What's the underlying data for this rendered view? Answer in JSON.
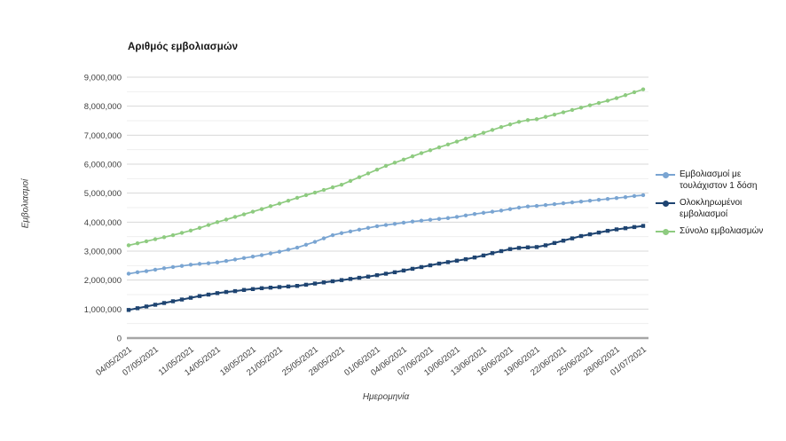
{
  "legend_position": "right",
  "colors": {
    "background": "#ffffff",
    "grid_major": "#d8d8d8",
    "grid_minor": "#efefef",
    "axis_line": "#a6a6a6",
    "tick_text": "#3d3d3d"
  },
  "chart_data": {
    "type": "line",
    "title": "Αριθμός εμβολιασμών",
    "xlabel": "Ημερομηνία",
    "ylabel": "Εμβολιασμοί",
    "ylim": [
      0,
      9000000
    ],
    "grid": {
      "major_step": 1000000,
      "minor_step": 500000,
      "visible": true
    },
    "x": [
      "04/05/2021",
      "05/05/2021",
      "06/05/2021",
      "07/05/2021",
      "08/05/2021",
      "09/05/2021",
      "10/05/2021",
      "11/05/2021",
      "12/05/2021",
      "13/05/2021",
      "14/05/2021",
      "15/05/2021",
      "16/05/2021",
      "17/05/2021",
      "18/05/2021",
      "19/05/2021",
      "20/05/2021",
      "21/05/2021",
      "22/05/2021",
      "23/05/2021",
      "24/05/2021",
      "25/05/2021",
      "26/05/2021",
      "27/05/2021",
      "28/05/2021",
      "29/05/2021",
      "30/05/2021",
      "31/05/2021",
      "01/06/2021",
      "02/06/2021",
      "03/06/2021",
      "04/06/2021",
      "05/06/2021",
      "06/06/2021",
      "07/06/2021",
      "08/06/2021",
      "09/06/2021",
      "10/06/2021",
      "11/06/2021",
      "12/06/2021",
      "13/06/2021",
      "14/06/2021",
      "15/06/2021",
      "16/06/2021",
      "17/06/2021",
      "18/06/2021",
      "19/06/2021",
      "20/06/2021",
      "21/06/2021",
      "22/06/2021",
      "23/06/2021",
      "24/06/2021",
      "25/06/2021",
      "26/06/2021",
      "27/06/2021",
      "28/06/2021",
      "29/06/2021",
      "30/06/2021",
      "01/07/2021"
    ],
    "x_tick_labels": [
      "04/05/2021",
      "07/05/2021",
      "11/05/2021",
      "14/05/2021",
      "18/05/2021",
      "21/05/2021",
      "25/05/2021",
      "28/05/2021",
      "01/06/2021",
      "04/06/2021",
      "07/06/2021",
      "10/06/2021",
      "13/06/2021",
      "16/06/2021",
      "19/06/2021",
      "22/06/2021",
      "25/06/2021",
      "28/06/2021",
      "01/07/2021"
    ],
    "series": [
      {
        "name": "Εμβολιασμοί με τουλάχιστον 1 δόση",
        "color": "#7aa5d2",
        "marker": "circle",
        "values": [
          2220000,
          2270000,
          2310000,
          2360000,
          2410000,
          2450000,
          2490000,
          2530000,
          2560000,
          2580000,
          2610000,
          2660000,
          2710000,
          2760000,
          2810000,
          2860000,
          2920000,
          2980000,
          3050000,
          3120000,
          3220000,
          3320000,
          3440000,
          3550000,
          3620000,
          3680000,
          3740000,
          3800000,
          3860000,
          3900000,
          3940000,
          3980000,
          4020000,
          4050000,
          4080000,
          4110000,
          4140000,
          4180000,
          4230000,
          4280000,
          4320000,
          4360000,
          4400000,
          4450000,
          4500000,
          4540000,
          4560000,
          4590000,
          4620000,
          4650000,
          4680000,
          4710000,
          4740000,
          4770000,
          4800000,
          4830000,
          4860000,
          4900000,
          4930000
        ]
      },
      {
        "name": "Ολοκληρωμένοι εμβολιασμοί",
        "color": "#1e4471",
        "marker": "square",
        "values": [
          970000,
          1030000,
          1090000,
          1150000,
          1210000,
          1270000,
          1330000,
          1390000,
          1450000,
          1500000,
          1550000,
          1590000,
          1620000,
          1660000,
          1690000,
          1720000,
          1740000,
          1760000,
          1780000,
          1800000,
          1840000,
          1880000,
          1920000,
          1960000,
          2000000,
          2040000,
          2080000,
          2120000,
          2170000,
          2220000,
          2270000,
          2330000,
          2390000,
          2450000,
          2510000,
          2570000,
          2620000,
          2670000,
          2720000,
          2780000,
          2850000,
          2930000,
          3000000,
          3070000,
          3110000,
          3130000,
          3140000,
          3200000,
          3280000,
          3360000,
          3440000,
          3520000,
          3580000,
          3640000,
          3700000,
          3750000,
          3790000,
          3830000,
          3870000
        ]
      },
      {
        "name": "Σύνολο εμβολιασμών",
        "color": "#8ecb80",
        "marker": "circle",
        "values": [
          3200000,
          3270000,
          3340000,
          3410000,
          3480000,
          3550000,
          3630000,
          3710000,
          3800000,
          3900000,
          4000000,
          4090000,
          4180000,
          4270000,
          4360000,
          4450000,
          4550000,
          4640000,
          4740000,
          4840000,
          4930000,
          5020000,
          5110000,
          5200000,
          5290000,
          5420000,
          5550000,
          5680000,
          5810000,
          5940000,
          6050000,
          6160000,
          6270000,
          6380000,
          6480000,
          6580000,
          6680000,
          6780000,
          6880000,
          6980000,
          7080000,
          7180000,
          7280000,
          7370000,
          7460000,
          7520000,
          7550000,
          7630000,
          7710000,
          7790000,
          7870000,
          7950000,
          8030000,
          8110000,
          8190000,
          8280000,
          8380000,
          8480000,
          8580000
        ]
      }
    ]
  }
}
